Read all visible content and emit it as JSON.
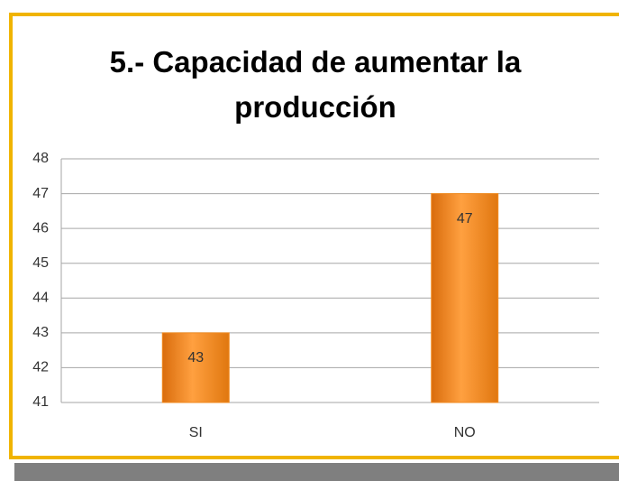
{
  "chart_data": {
    "type": "bar",
    "title": "5.- Capacidad de aumentar la producción",
    "categories": [
      "SI",
      "NO"
    ],
    "values": [
      43,
      47
    ],
    "color": "#f28a1e",
    "ylim": [
      41,
      48
    ],
    "yticks": [
      41,
      42,
      43,
      44,
      45,
      46,
      47,
      48
    ],
    "grid": true
  }
}
